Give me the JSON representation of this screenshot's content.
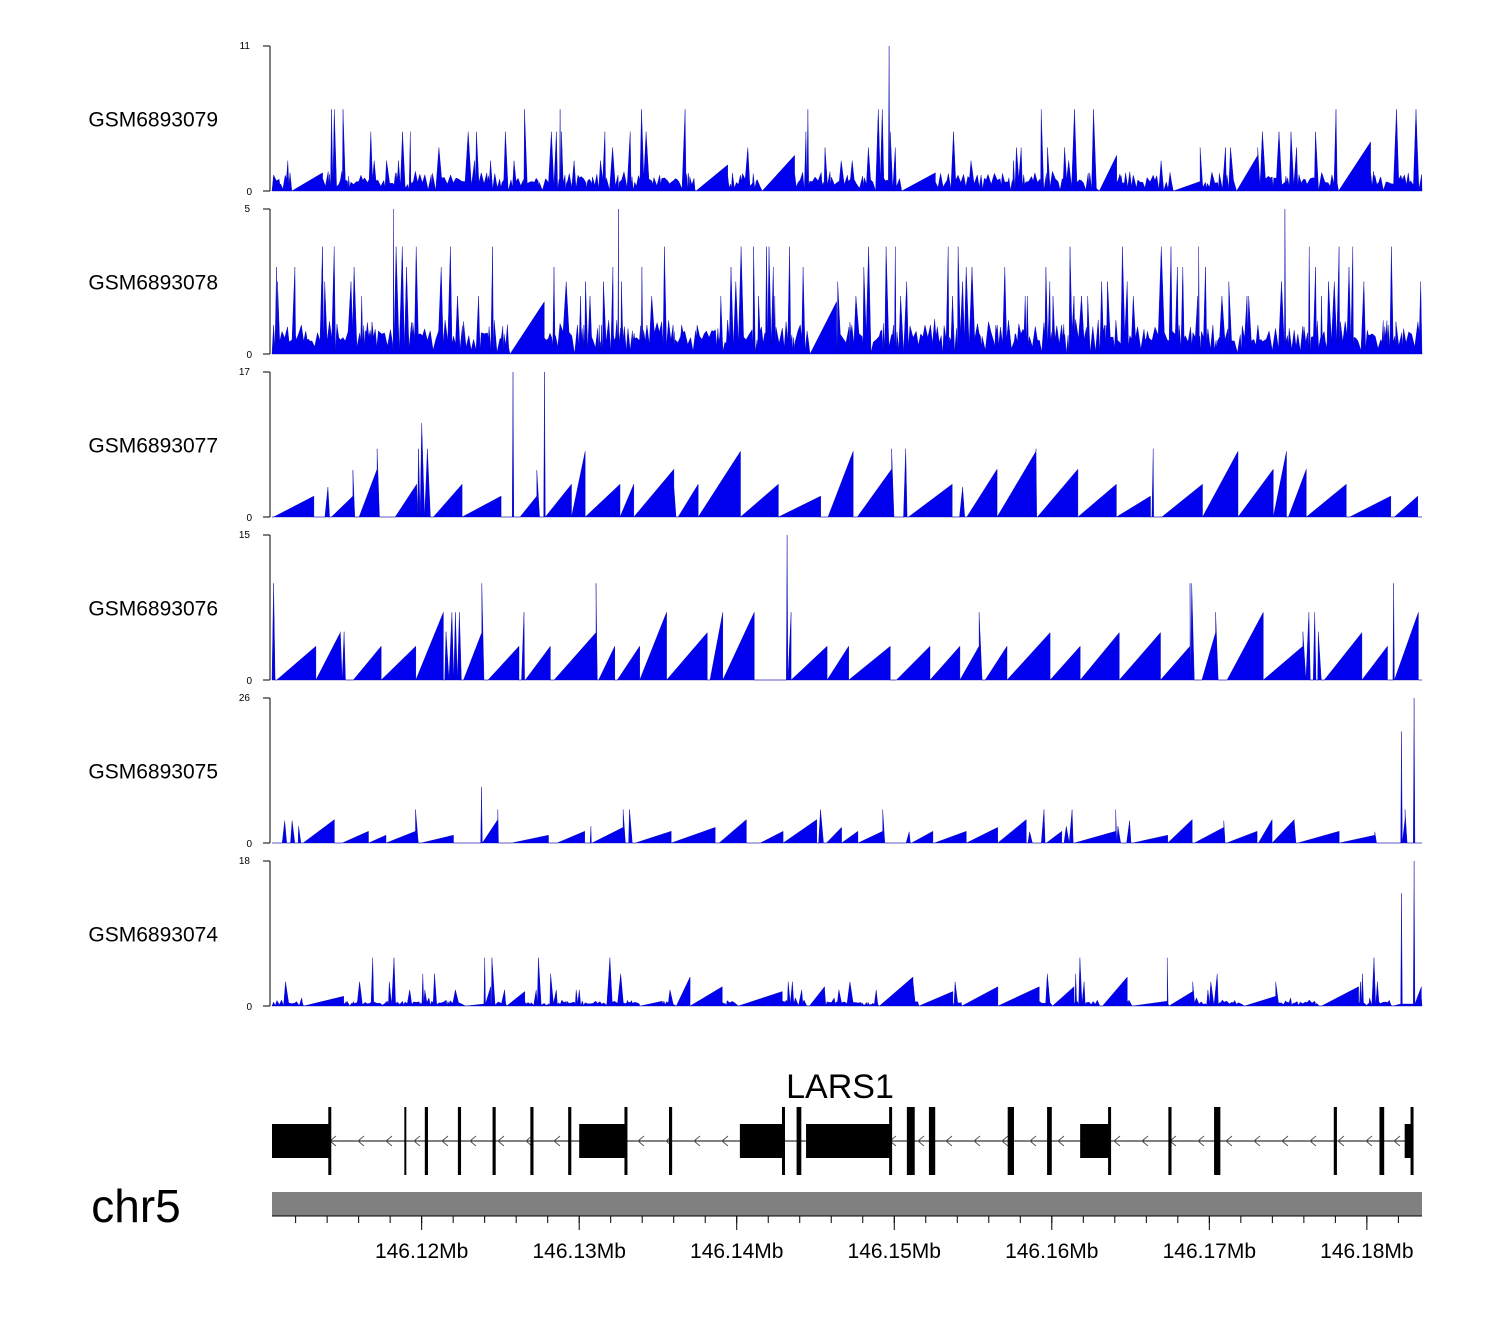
{
  "chart_data": {
    "type": "area",
    "title": "",
    "chromosome": "chr5",
    "x_unit": "Mb",
    "xlim": [
      146.1105,
      146.1835
    ],
    "x_tick_labels": [
      "146.12Mb",
      "146.13Mb",
      "146.14Mb",
      "146.15Mb",
      "146.16Mb",
      "146.17Mb",
      "146.18Mb"
    ],
    "x_tick_values": [
      146.12,
      146.13,
      146.14,
      146.15,
      146.16,
      146.17,
      146.18
    ],
    "tracks": [
      {
        "name": "GSM6893079",
        "ymin": 0,
        "ymax": 11,
        "ymin_label": "0",
        "ymax_label": "11",
        "baseline": 1,
        "spike_levels": [
          1.2,
          2.3,
          3.3,
          4.5,
          6.2
        ],
        "gap_prob": 0.03,
        "peaks": [
          {
            "x": 146.14967,
            "y": 11
          }
        ],
        "color": "#0000ee"
      },
      {
        "name": "GSM6893078",
        "ymin": 0,
        "ymax": 5,
        "ymin_label": "0",
        "ymax_label": "5",
        "baseline": 0.8,
        "spike_levels": [
          1,
          2,
          2.5,
          3,
          3.7
        ],
        "gap_prob": 0.01,
        "peaks": [
          {
            "x": 146.1182,
            "y": 5
          },
          {
            "x": 146.1325,
            "y": 5
          },
          {
            "x": 146.1748,
            "y": 5
          }
        ],
        "color": "#0000ee"
      },
      {
        "name": "GSM6893077",
        "ymin": 0,
        "ymax": 17,
        "ymin_label": "0",
        "ymax_label": "17",
        "baseline": 0,
        "spike_levels": [
          3.5,
          5.5,
          8,
          11
        ],
        "gap_prob": 0.35,
        "peaks": [
          {
            "x": 146.1258,
            "y": 17
          },
          {
            "x": 146.1278,
            "y": 17
          }
        ],
        "color": "#0000ee"
      },
      {
        "name": "GSM6893076",
        "ymin": 0,
        "ymax": 15,
        "ymin_label": "0",
        "ymax_label": "15",
        "baseline": 0,
        "spike_levels": [
          5,
          7,
          10
        ],
        "gap_prob": 0.4,
        "peaks": [
          {
            "x": 146.1432,
            "y": 15
          },
          {
            "x": 146.1817,
            "y": 10
          }
        ],
        "color": "#0000ee"
      },
      {
        "name": "GSM6893075",
        "ymin": 0,
        "ymax": 26,
        "ymin_label": "0",
        "ymax_label": "26",
        "baseline": 0,
        "spike_levels": [
          2,
          3,
          4,
          6
        ],
        "gap_prob": 0.35,
        "peaks": [
          {
            "x": 146.1238,
            "y": 10
          },
          {
            "x": 146.183,
            "y": 26
          },
          {
            "x": 146.1822,
            "y": 20
          }
        ],
        "color": "#0000ee"
      },
      {
        "name": "GSM6893074",
        "ymin": 0,
        "ymax": 18,
        "ymin_label": "0",
        "ymax_label": "18",
        "baseline": 0.5,
        "spike_levels": [
          1,
          2,
          3,
          4,
          6
        ],
        "gap_prob": 0.08,
        "peaks": [
          {
            "x": 146.124,
            "y": 6
          },
          {
            "x": 146.183,
            "y": 18
          },
          {
            "x": 146.1822,
            "y": 14
          }
        ],
        "color": "#0000ee"
      }
    ],
    "gene": {
      "name": "LARS1",
      "strand": "-",
      "start": 146.1105,
      "end": 146.1829,
      "exons": [
        {
          "start": 146.1105,
          "end": 146.1142,
          "kind": "utr"
        },
        {
          "start": 146.1189,
          "end": 146.119,
          "kind": "cds"
        },
        {
          "start": 146.1202,
          "end": 146.1204,
          "kind": "cds"
        },
        {
          "start": 146.1223,
          "end": 146.1225,
          "kind": "cds"
        },
        {
          "start": 146.1245,
          "end": 146.1247,
          "kind": "cds"
        },
        {
          "start": 146.1269,
          "end": 146.1271,
          "kind": "cds"
        },
        {
          "start": 146.1293,
          "end": 146.1295,
          "kind": "cds"
        },
        {
          "start": 146.13,
          "end": 146.133,
          "kind": "utr"
        },
        {
          "start": 146.1357,
          "end": 146.1359,
          "kind": "cds"
        },
        {
          "start": 146.1402,
          "end": 146.143,
          "kind": "utr"
        },
        {
          "start": 146.1438,
          "end": 146.1441,
          "kind": "cds"
        },
        {
          "start": 146.1444,
          "end": 146.1498,
          "kind": "utr"
        },
        {
          "start": 146.1508,
          "end": 146.1513,
          "kind": "cds"
        },
        {
          "start": 146.1522,
          "end": 146.1526,
          "kind": "cds"
        },
        {
          "start": 146.1572,
          "end": 146.1576,
          "kind": "cds"
        },
        {
          "start": 146.1597,
          "end": 146.16,
          "kind": "cds"
        },
        {
          "start": 146.1618,
          "end": 146.1637,
          "kind": "utr"
        },
        {
          "start": 146.1674,
          "end": 146.1676,
          "kind": "cds"
        },
        {
          "start": 146.1703,
          "end": 146.1707,
          "kind": "cds"
        },
        {
          "start": 146.1779,
          "end": 146.1781,
          "kind": "cds"
        },
        {
          "start": 146.1808,
          "end": 146.1811,
          "kind": "cds"
        },
        {
          "start": 146.1824,
          "end": 146.1829,
          "kind": "utr"
        }
      ],
      "color": "#000000"
    },
    "ideogram_color": "#808080",
    "legend": "none",
    "grid": false
  }
}
